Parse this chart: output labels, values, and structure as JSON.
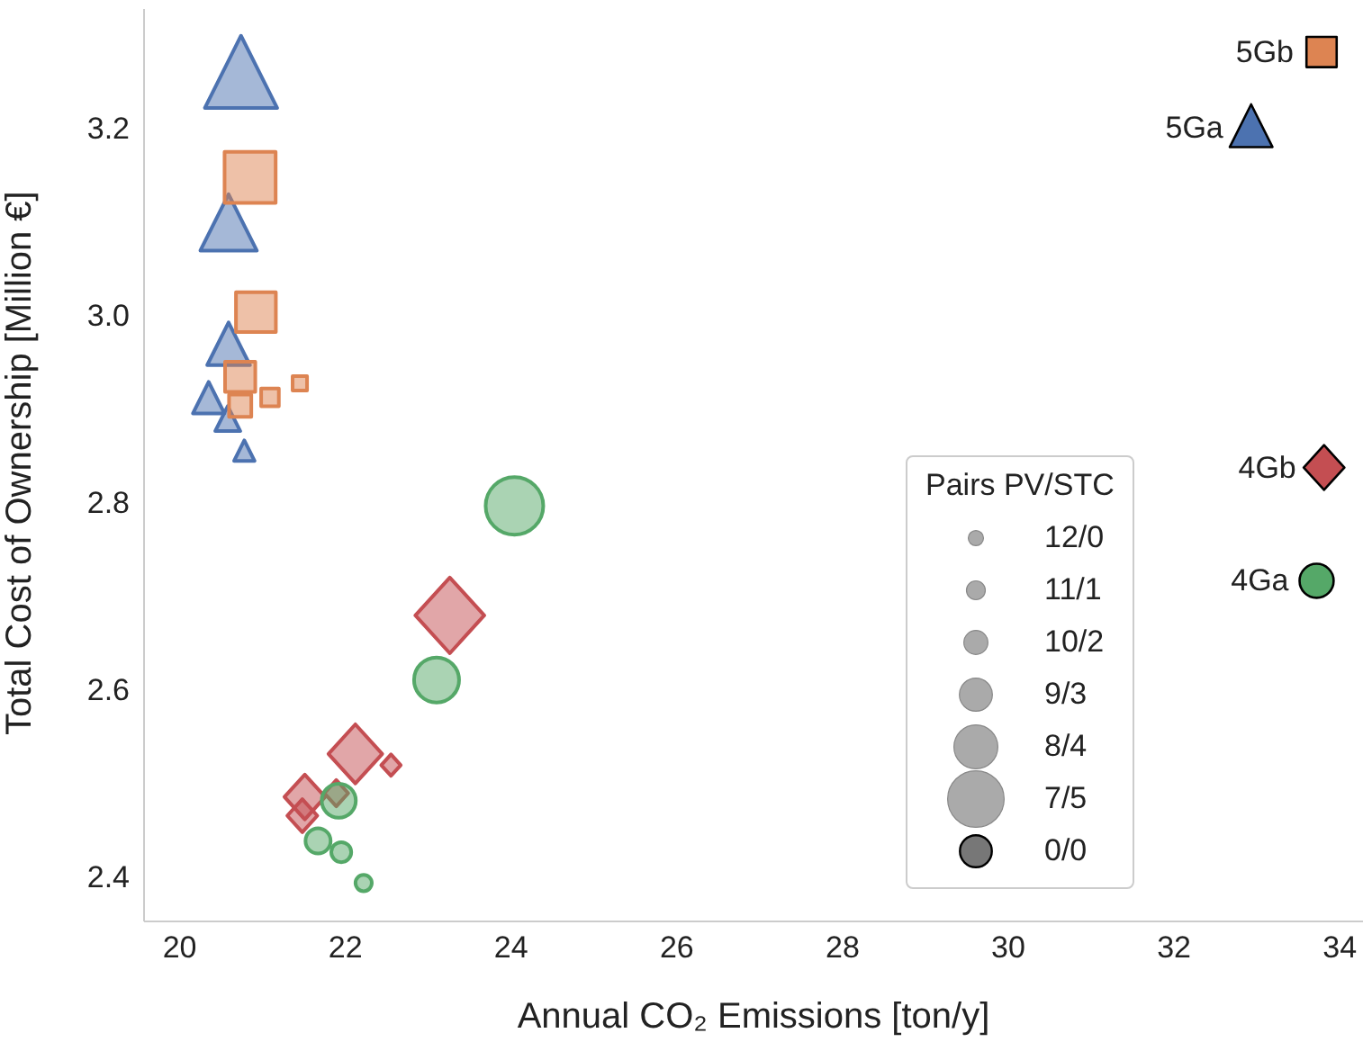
{
  "chart_data": {
    "type": "bubble",
    "xlabel": "Annual CO₂ Emissions [ton/y]",
    "ylabel": "Total Cost of Ownership [Million €]",
    "legend_title": "Pairs PV/STC",
    "xlim": [
      19.57,
      34.28
    ],
    "ylim": [
      2.352,
      3.327
    ],
    "xticks": [
      20,
      22,
      24,
      26,
      28,
      30,
      32,
      34
    ],
    "yticks": [
      2.4,
      2.6,
      2.8,
      {
        "value": 3.0,
        "label": "3.0"
      },
      3.2
    ],
    "grid": false,
    "size_legend": [
      {
        "value": 0.08,
        "label": "12/0"
      },
      {
        "value": 0.12,
        "label": "11/1"
      },
      {
        "value": 0.19,
        "label": "10/2"
      },
      {
        "value": 0.35,
        "label": "9/3"
      },
      {
        "value": 0.61,
        "label": "8/4"
      },
      {
        "value": 1,
        "label": "7/5"
      },
      {
        "value": 0.35,
        "label": "0/0"
      }
    ],
    "series": [
      {
        "color": "#4c72b0",
        "marker": "triangle",
        "x": [
          20.74,
          20.59,
          20.59,
          20.35,
          20.58,
          20.78
        ],
        "values": [
          3.256,
          3.096,
          2.967,
          2.91,
          2.888,
          2.854
        ],
        "sizes": [
          1,
          0.61,
          0.35,
          0.19,
          0.12,
          0.08
        ]
      },
      {
        "color": "#dd8452",
        "marker": "square",
        "x": [
          20.85,
          20.92,
          20.73,
          20.73,
          21.09,
          21.45
        ],
        "values": [
          3.147,
          3.003,
          2.934,
          2.903,
          2.912,
          2.927
        ],
        "sizes": [
          1,
          0.61,
          0.35,
          0.19,
          0.12,
          0.08
        ]
      },
      {
        "color": "#c44e52",
        "marker": "diamond",
        "x": [
          23.26,
          22.12,
          22.55,
          21.51,
          21.89,
          21.48
        ],
        "values": [
          2.679,
          2.531,
          2.519,
          2.485,
          2.489,
          2.465
        ],
        "sizes": [
          1,
          0.61,
          0.08,
          0.35,
          0.12,
          0.19
        ]
      },
      {
        "color": "#55a868",
        "marker": "circle",
        "x": [
          24.04,
          23.1,
          21.92,
          21.67,
          21.95,
          22.22
        ],
        "values": [
          2.796,
          2.61,
          2.481,
          2.438,
          2.426,
          2.393
        ],
        "sizes": [
          1,
          0.61,
          0.35,
          0.19,
          0.12,
          0.08
        ]
      },
      {
        "name": "5Gb",
        "color": "#dd8452",
        "marker": "square",
        "x": [
          33.78
        ],
        "values": [
          3.281
        ],
        "sizes": [
          0.35
        ]
      },
      {
        "name": "5Ga",
        "color": "#4c72b0",
        "marker": "triangle",
        "x": [
          32.93
        ],
        "values": [
          3.2
        ],
        "sizes": [
          0.35
        ]
      },
      {
        "name": "4Gb",
        "color": "#c44e52",
        "marker": "diamond",
        "x": [
          33.81
        ],
        "values": [
          2.837
        ],
        "sizes": [
          0.35
        ]
      },
      {
        "name": "4Ga",
        "color": "#55a868",
        "marker": "circle",
        "x": [
          33.72
        ],
        "values": [
          2.716
        ],
        "sizes": [
          0.35
        ]
      }
    ]
  }
}
